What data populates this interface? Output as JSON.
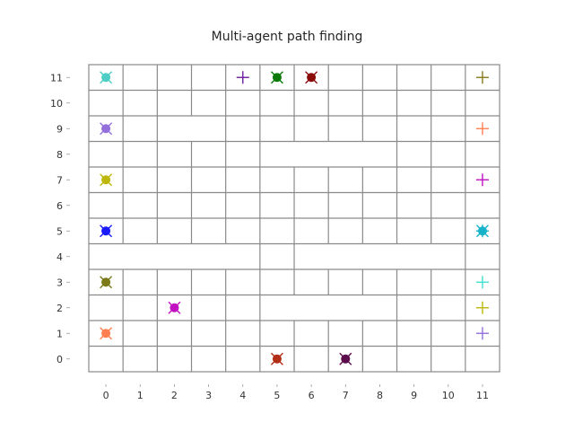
{
  "title": "Multi-agent path finding",
  "grid": {
    "cols": 12,
    "rows": 12,
    "x_ticks": [
      "0",
      "1",
      "2",
      "3",
      "4",
      "5",
      "6",
      "7",
      "8",
      "9",
      "10",
      "11"
    ],
    "y_ticks": [
      "0",
      "1",
      "2",
      "3",
      "4",
      "5",
      "6",
      "7",
      "8",
      "9",
      "10",
      "11"
    ],
    "merged_regions": [
      {
        "x": [
          2,
          3
        ],
        "y": [
          9,
          9
        ]
      },
      {
        "x": [
          2,
          2
        ],
        "y": [
          8,
          8
        ]
      },
      {
        "x": [
          8,
          8
        ],
        "y": [
          8,
          9
        ]
      },
      {
        "x": [
          5,
          8
        ],
        "y": [
          8,
          8
        ]
      },
      {
        "x": [
          5,
          5
        ],
        "y": [
          7,
          7
        ]
      },
      {
        "x": [
          2,
          2
        ],
        "y": [
          5,
          5
        ]
      },
      {
        "x": [
          0,
          4
        ],
        "y": [
          4,
          4
        ]
      },
      {
        "x": [
          5,
          5
        ],
        "y": [
          4,
          4
        ]
      },
      {
        "x": [
          6,
          10
        ],
        "y": [
          4,
          4
        ]
      },
      {
        "x": [
          10,
          10
        ],
        "y": [
          5,
          5
        ]
      },
      {
        "x": [
          9,
          9
        ],
        "y": [
          3,
          3
        ]
      },
      {
        "x": [
          5,
          8
        ],
        "y": [
          2,
          2
        ]
      }
    ]
  },
  "agents": [
    {
      "x": 0,
      "y": 11,
      "color": "#4ecdc4"
    },
    {
      "x": 5,
      "y": 11,
      "color": "#0b7a0b"
    },
    {
      "x": 6,
      "y": 11,
      "color": "#8b0a0a"
    },
    {
      "x": 0,
      "y": 9,
      "color": "#9370db"
    },
    {
      "x": 0,
      "y": 7,
      "color": "#bdb70a"
    },
    {
      "x": 0,
      "y": 5,
      "color": "#1a1aff"
    },
    {
      "x": 11,
      "y": 5,
      "color": "#17b3c9"
    },
    {
      "x": 0,
      "y": 3,
      "color": "#7b7b1a"
    },
    {
      "x": 2,
      "y": 2,
      "color": "#c010c0"
    },
    {
      "x": 0,
      "y": 1,
      "color": "#ff7f50"
    },
    {
      "x": 5,
      "y": 0,
      "color": "#b22e16"
    },
    {
      "x": 7,
      "y": 0,
      "color": "#5b0d4b"
    }
  ],
  "goals": [
    {
      "x": 4,
      "y": 11,
      "color": "#6a1fa0"
    },
    {
      "x": 11,
      "y": 11,
      "color": "#8b7a1a"
    },
    {
      "x": 11,
      "y": 9,
      "color": "#ff7f50"
    },
    {
      "x": 11,
      "y": 7,
      "color": "#c010c0"
    },
    {
      "x": 11,
      "y": 5,
      "color": "#17b3c9"
    },
    {
      "x": 11,
      "y": 3,
      "color": "#40e0d0"
    },
    {
      "x": 11,
      "y": 2,
      "color": "#bdb70a"
    },
    {
      "x": 11,
      "y": 1,
      "color": "#9370db"
    }
  ]
}
